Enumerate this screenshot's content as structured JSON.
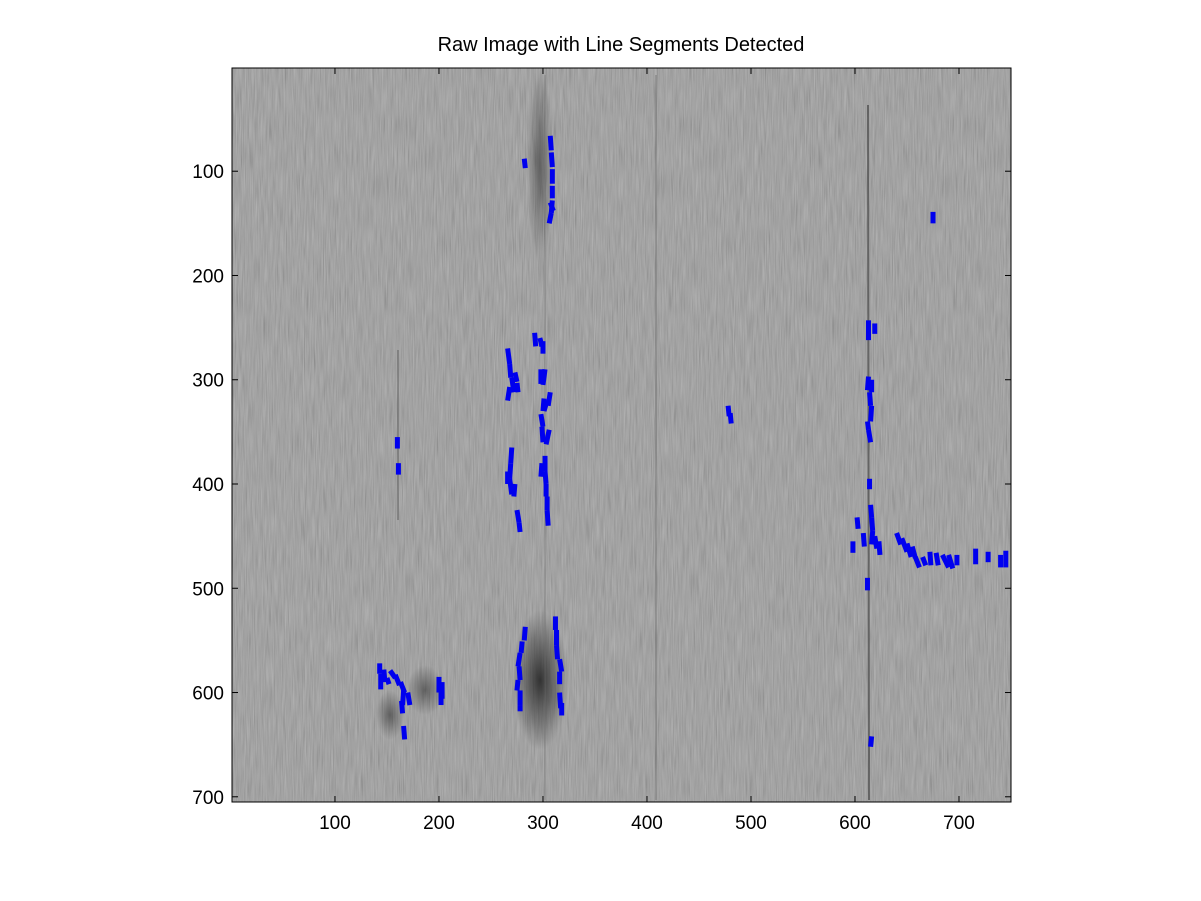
{
  "chart_data": {
    "type": "scatter",
    "title": "Raw Image with Line Segments Detected",
    "xlabel": "",
    "ylabel": "",
    "xlim": [
      1,
      750
    ],
    "ylim": [
      1,
      705
    ],
    "y_reversed": true,
    "x_ticks": [
      100,
      200,
      300,
      400,
      500,
      600,
      700
    ],
    "y_ticks": [
      100,
      200,
      300,
      400,
      500,
      600,
      700
    ],
    "background": "grayscale raw image",
    "segment_color": "#0000ee",
    "grid": false,
    "segments": [
      [
        282,
        88,
        283,
        97
      ],
      [
        307,
        66,
        308,
        80
      ],
      [
        308,
        82,
        309,
        96
      ],
      [
        309,
        98,
        309,
        112
      ],
      [
        309,
        114,
        309,
        126
      ],
      [
        309,
        128,
        308,
        140
      ],
      [
        308,
        140,
        306,
        150
      ],
      [
        307,
        130,
        310,
        138
      ],
      [
        675,
        139,
        675,
        150
      ],
      [
        613,
        243,
        613,
        262
      ],
      [
        619,
        246,
        619,
        256
      ],
      [
        292,
        255,
        293,
        268
      ],
      [
        297,
        260,
        299,
        268
      ],
      [
        300,
        263,
        300,
        275
      ],
      [
        266,
        270,
        268,
        285
      ],
      [
        268,
        285,
        269,
        298
      ],
      [
        270,
        298,
        272,
        312
      ],
      [
        273,
        293,
        275,
        302
      ],
      [
        275,
        303,
        276,
        312
      ],
      [
        268,
        307,
        266,
        320
      ],
      [
        302,
        290,
        300,
        305
      ],
      [
        298,
        290,
        298,
        304
      ],
      [
        306,
        348,
        303,
        362
      ],
      [
        307,
        312,
        305,
        325
      ],
      [
        301,
        318,
        300,
        330
      ],
      [
        298,
        333,
        300,
        345
      ],
      [
        299,
        345,
        300,
        360
      ],
      [
        304,
        320,
        301,
        330
      ],
      [
        613,
        297,
        612,
        310
      ],
      [
        616,
        300,
        616,
        312
      ],
      [
        614,
        312,
        615,
        325
      ],
      [
        616,
        325,
        615,
        340
      ],
      [
        612,
        340,
        613,
        348
      ],
      [
        613,
        348,
        615,
        360
      ],
      [
        478,
        325,
        479,
        335
      ],
      [
        480,
        332,
        481,
        342
      ],
      [
        160,
        355,
        160,
        366
      ],
      [
        161,
        380,
        161,
        391
      ],
      [
        270,
        365,
        269,
        380
      ],
      [
        269,
        380,
        268,
        395
      ],
      [
        266,
        388,
        266,
        400
      ],
      [
        268,
        395,
        270,
        410
      ],
      [
        273,
        400,
        272,
        412
      ],
      [
        275,
        425,
        277,
        437
      ],
      [
        277,
        437,
        278,
        446
      ],
      [
        302,
        373,
        302,
        388
      ],
      [
        302,
        388,
        303,
        400
      ],
      [
        303,
        400,
        303,
        412
      ],
      [
        304,
        412,
        304,
        425
      ],
      [
        304,
        425,
        305,
        440
      ],
      [
        299,
        380,
        298,
        393
      ],
      [
        614,
        395,
        614,
        405
      ],
      [
        615,
        420,
        616,
        432
      ],
      [
        616,
        432,
        617,
        445
      ],
      [
        617,
        445,
        616,
        458
      ],
      [
        619,
        450,
        621,
        462
      ],
      [
        623,
        455,
        624,
        468
      ],
      [
        598,
        455,
        598,
        466
      ],
      [
        602,
        432,
        603,
        443
      ],
      [
        608,
        447,
        609,
        460
      ],
      [
        640,
        447,
        644,
        458
      ],
      [
        645,
        452,
        650,
        465
      ],
      [
        650,
        457,
        654,
        470
      ],
      [
        655,
        460,
        658,
        471
      ],
      [
        658,
        470,
        662,
        480
      ],
      [
        665,
        470,
        668,
        478
      ],
      [
        672,
        465,
        673,
        478
      ],
      [
        678,
        466,
        680,
        478
      ],
      [
        684,
        468,
        690,
        480
      ],
      [
        690,
        468,
        694,
        481
      ],
      [
        698,
        468,
        698,
        478
      ],
      [
        716,
        462,
        716,
        477
      ],
      [
        728,
        465,
        728,
        475
      ],
      [
        740,
        468,
        740,
        480
      ],
      [
        745,
        464,
        745,
        480
      ],
      [
        612,
        490,
        612,
        502
      ],
      [
        616,
        642,
        615,
        652
      ],
      [
        283,
        537,
        282,
        550
      ],
      [
        280,
        551,
        279,
        562
      ],
      [
        278,
        562,
        276,
        575
      ],
      [
        277,
        575,
        278,
        588
      ],
      [
        276,
        588,
        275,
        598
      ],
      [
        278,
        598,
        278,
        612
      ],
      [
        278,
        612,
        278,
        618
      ],
      [
        312,
        527,
        312,
        540
      ],
      [
        313,
        540,
        313,
        555
      ],
      [
        313,
        555,
        314,
        568
      ],
      [
        316,
        568,
        318,
        580
      ],
      [
        316,
        580,
        316,
        592
      ],
      [
        316,
        600,
        317,
        615
      ],
      [
        318,
        610,
        318,
        622
      ],
      [
        143,
        572,
        143,
        582
      ],
      [
        144,
        582,
        144,
        597
      ],
      [
        147,
        578,
        148,
        590
      ],
      [
        150,
        586,
        152,
        592
      ],
      [
        153,
        579,
        158,
        586
      ],
      [
        158,
        583,
        162,
        593
      ],
      [
        163,
        590,
        167,
        600
      ],
      [
        166,
        598,
        165,
        612
      ],
      [
        164,
        608,
        165,
        620
      ],
      [
        170,
        600,
        172,
        612
      ],
      [
        166,
        632,
        167,
        645
      ],
      [
        200,
        585,
        200,
        600
      ],
      [
        203,
        590,
        203,
        606
      ],
      [
        202,
        600,
        202,
        612
      ]
    ]
  }
}
